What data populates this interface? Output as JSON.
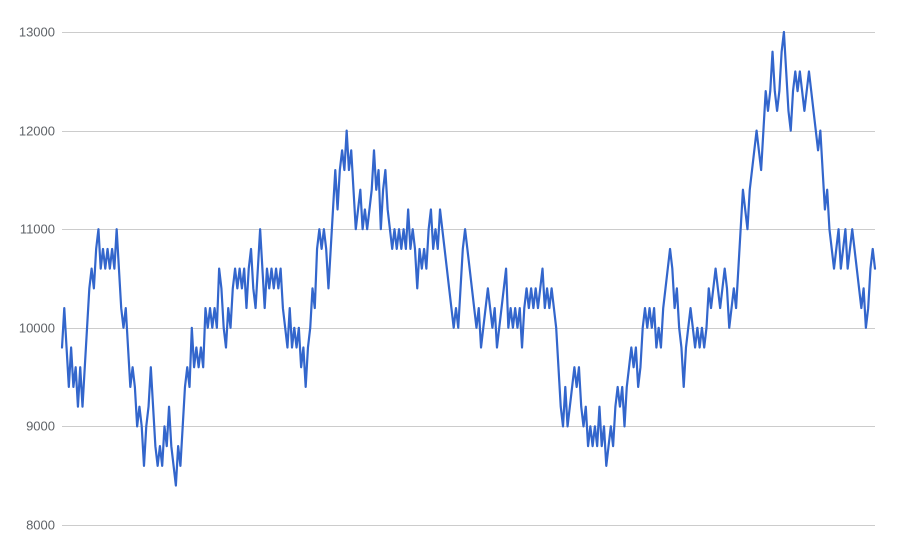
{
  "chart_data": {
    "type": "line",
    "title": "",
    "xlabel": "",
    "ylabel": "",
    "ylim": [
      8000,
      13000
    ],
    "yticks": [
      8000,
      9000,
      10000,
      11000,
      12000,
      13000
    ],
    "y_tick_labels": [
      "8000",
      "9000",
      "10000",
      "11000",
      "12000",
      "13000"
    ],
    "grid": true,
    "legend": "none",
    "colors": {
      "series": "#3366cc",
      "grid": "#cccccc",
      "tick_text": "#5f6368"
    },
    "series": [
      {
        "values": [
          9800,
          10200,
          9800,
          9400,
          9800,
          9400,
          9600,
          9200,
          9600,
          9200,
          9600,
          10000,
          10400,
          10600,
          10400,
          10800,
          11000,
          10600,
          10800,
          10600,
          10800,
          10600,
          10800,
          10600,
          11000,
          10600,
          10200,
          10000,
          10200,
          9800,
          9400,
          9600,
          9400,
          9000,
          9200,
          9000,
          8600,
          9000,
          9200,
          9600,
          9200,
          8800,
          8600,
          8800,
          8600,
          9000,
          8800,
          9200,
          8800,
          8600,
          8400,
          8800,
          8600,
          9000,
          9400,
          9600,
          9400,
          10000,
          9600,
          9800,
          9600,
          9800,
          9600,
          10200,
          10000,
          10200,
          10000,
          10200,
          10000,
          10600,
          10400,
          10000,
          9800,
          10200,
          10000,
          10400,
          10600,
          10400,
          10600,
          10400,
          10600,
          10200,
          10600,
          10800,
          10400,
          10200,
          10600,
          11000,
          10600,
          10200,
          10600,
          10400,
          10600,
          10400,
          10600,
          10400,
          10600,
          10200,
          10000,
          9800,
          10200,
          9800,
          10000,
          9800,
          10000,
          9600,
          9800,
          9400,
          9800,
          10000,
          10400,
          10200,
          10800,
          11000,
          10800,
          11000,
          10800,
          10400,
          10800,
          11200,
          11600,
          11200,
          11600,
          11800,
          11600,
          12000,
          11600,
          11800,
          11400,
          11000,
          11200,
          11400,
          11000,
          11200,
          11000,
          11200,
          11400,
          11800,
          11400,
          11600,
          11000,
          11400,
          11600,
          11200,
          11000,
          10800,
          11000,
          10800,
          11000,
          10800,
          11000,
          10800,
          11200,
          10800,
          11000,
          10800,
          10400,
          10800,
          10600,
          10800,
          10600,
          11000,
          11200,
          10800,
          11000,
          10800,
          11200,
          11000,
          10800,
          10600,
          10400,
          10200,
          10000,
          10200,
          10000,
          10400,
          10800,
          11000,
          10800,
          10600,
          10400,
          10200,
          10000,
          10200,
          9800,
          10000,
          10200,
          10400,
          10200,
          10000,
          10200,
          9800,
          10000,
          10200,
          10400,
          10600,
          10000,
          10200,
          10000,
          10200,
          10000,
          10200,
          9800,
          10200,
          10400,
          10200,
          10400,
          10200,
          10400,
          10200,
          10400,
          10600,
          10200,
          10400,
          10200,
          10400,
          10200,
          10000,
          9600,
          9200,
          9000,
          9400,
          9000,
          9200,
          9400,
          9600,
          9400,
          9600,
          9200,
          9000,
          9200,
          8800,
          9000,
          8800,
          9000,
          8800,
          9200,
          8800,
          9000,
          8600,
          8800,
          9000,
          8800,
          9200,
          9400,
          9200,
          9400,
          9000,
          9400,
          9600,
          9800,
          9600,
          9800,
          9400,
          9600,
          10000,
          10200,
          10000,
          10200,
          10000,
          10200,
          9800,
          10000,
          9800,
          10200,
          10400,
          10600,
          10800,
          10600,
          10200,
          10400,
          10000,
          9800,
          9400,
          9800,
          10000,
          10200,
          10000,
          9800,
          10000,
          9800,
          10000,
          9800,
          10000,
          10400,
          10200,
          10400,
          10600,
          10400,
          10200,
          10400,
          10600,
          10400,
          10000,
          10200,
          10400,
          10200,
          10600,
          11000,
          11400,
          11200,
          11000,
          11400,
          11600,
          11800,
          12000,
          11800,
          11600,
          12000,
          12400,
          12200,
          12400,
          12800,
          12400,
          12200,
          12400,
          12800,
          13000,
          12600,
          12200,
          12000,
          12400,
          12600,
          12400,
          12600,
          12400,
          12200,
          12400,
          12600,
          12400,
          12200,
          12000,
          11800,
          12000,
          11600,
          11200,
          11400,
          11000,
          10800,
          10600,
          10800,
          11000,
          10600,
          10800,
          11000,
          10600,
          10800,
          11000,
          10800,
          10600,
          10400,
          10200,
          10400,
          10000,
          10200,
          10600,
          10800,
          10600
        ]
      }
    ]
  }
}
